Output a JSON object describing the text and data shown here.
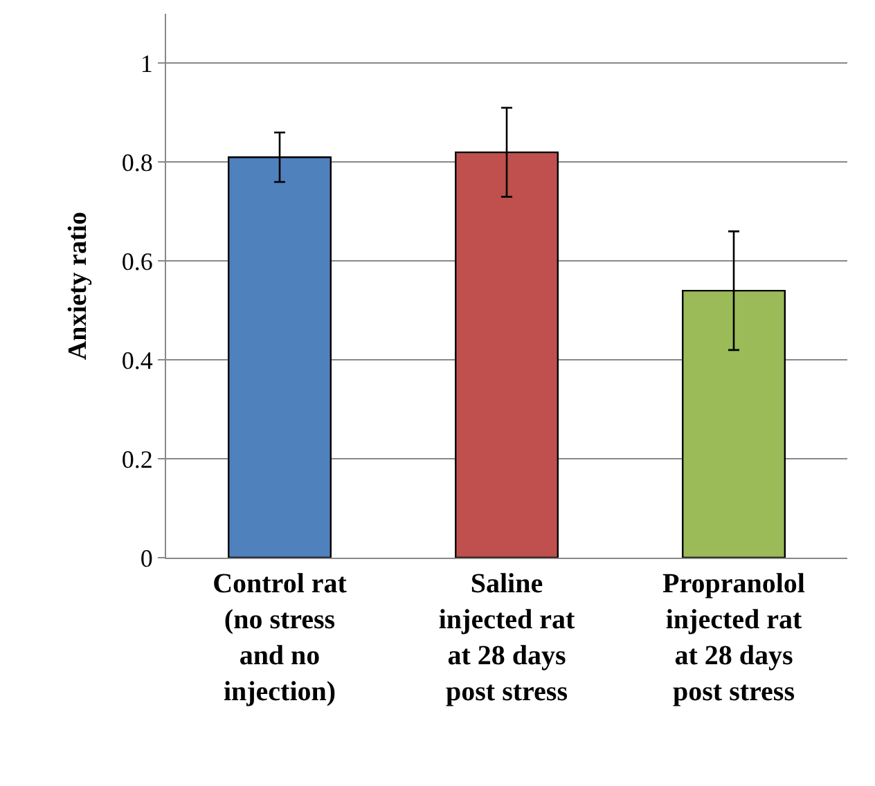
{
  "chart_data": {
    "type": "bar",
    "ylabel": "Anxiety ratio",
    "categories": [
      "Control rat (no stress and no injection)",
      "Saline injected rat at 28 days post stress",
      "Propranolol injected rat at 28 days post stress"
    ],
    "values": [
      0.81,
      0.82,
      0.54
    ],
    "colors": [
      "#4f81bd",
      "#c0504d",
      "#9bbb59"
    ],
    "errors": [
      0.05,
      [
        0.73,
        0.91
      ],
      [
        0.42,
        0.66
      ]
    ],
    "ylim": [
      0,
      1.1
    ],
    "yticks": [
      0,
      0.2,
      0.4,
      0.6,
      0.8,
      1
    ],
    "grid": "y"
  }
}
